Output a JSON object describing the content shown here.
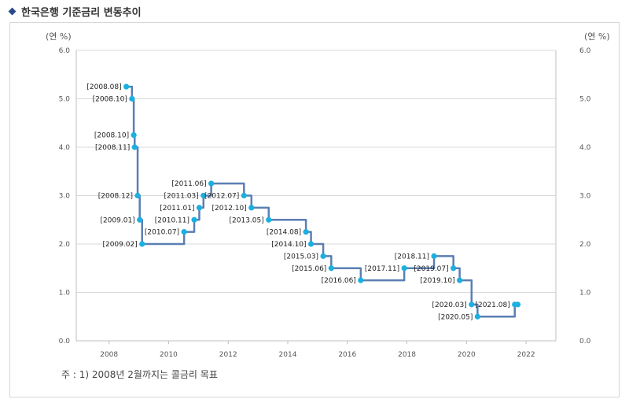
{
  "header": {
    "title": "한국은행 기준금리 변동추이"
  },
  "note": "주 : 1) 2008년 2월까지는 콜금리 목표",
  "colors": {
    "line": "#5a7fb3",
    "point": "#1ab0e0",
    "grid": "#d9d9d9",
    "axis": "#bfbfbf"
  },
  "chart_data": {
    "type": "line",
    "step": true,
    "ylabel_left": "(연 %)",
    "ylabel_right": "(연 %)",
    "ylim": [
      0,
      6
    ],
    "xlim": [
      2006.9,
      2023.0
    ],
    "yticks": [
      "0.0",
      "1.0",
      "2.0",
      "3.0",
      "4.0",
      "5.0",
      "6.0"
    ],
    "xticks": [
      "2008",
      "2010",
      "2012",
      "2014",
      "2016",
      "2018",
      "2020",
      "2022"
    ],
    "grid": "horizontal",
    "series": [
      {
        "points": [
          {
            "label": "[2008.08]",
            "x": 2008.58,
            "y": 5.25,
            "side": "left"
          },
          {
            "label": "[2008.10]",
            "x": 2008.77,
            "y": 5.0,
            "side": "left"
          },
          {
            "label": "[2008.10]",
            "x": 2008.83,
            "y": 4.25,
            "side": "left"
          },
          {
            "label": "[2008.11]",
            "x": 2008.86,
            "y": 4.0,
            "side": "left"
          },
          {
            "label": "[2008.12]",
            "x": 2008.96,
            "y": 3.0,
            "side": "left"
          },
          {
            "label": "[2009.01]",
            "x": 2009.03,
            "y": 2.5,
            "side": "left"
          },
          {
            "label": "[2009.02]",
            "x": 2009.11,
            "y": 2.0,
            "side": "left"
          },
          {
            "label": "[2010.07]",
            "x": 2010.52,
            "y": 2.25,
            "side": "left"
          },
          {
            "label": "[2010.11]",
            "x": 2010.86,
            "y": 2.5,
            "side": "left"
          },
          {
            "label": "[2011.01]",
            "x": 2011.03,
            "y": 2.75,
            "side": "left"
          },
          {
            "label": "[2011.03]",
            "x": 2011.17,
            "y": 3.0,
            "side": "left"
          },
          {
            "label": "[2011.06]",
            "x": 2011.43,
            "y": 3.25,
            "side": "left"
          },
          {
            "label": "[2012.07]",
            "x": 2012.53,
            "y": 3.0,
            "side": "left"
          },
          {
            "label": "[2012.10]",
            "x": 2012.78,
            "y": 2.75,
            "side": "left"
          },
          {
            "label": "[2013.05]",
            "x": 2013.36,
            "y": 2.5,
            "side": "left"
          },
          {
            "label": "[2014.08]",
            "x": 2014.61,
            "y": 2.25,
            "side": "left"
          },
          {
            "label": "[2014.10]",
            "x": 2014.78,
            "y": 2.0,
            "side": "left"
          },
          {
            "label": "[2015.03]",
            "x": 2015.19,
            "y": 1.75,
            "side": "left"
          },
          {
            "label": "[2015.06]",
            "x": 2015.46,
            "y": 1.5,
            "side": "left"
          },
          {
            "label": "[2016.06]",
            "x": 2016.45,
            "y": 1.25,
            "side": "left"
          },
          {
            "label": "[2017.11]",
            "x": 2017.91,
            "y": 1.5,
            "side": "left"
          },
          {
            "label": "[2018.11]",
            "x": 2018.91,
            "y": 1.75,
            "side": "left"
          },
          {
            "label": "[2019.07]",
            "x": 2019.56,
            "y": 1.5,
            "side": "left"
          },
          {
            "label": "[2019.10]",
            "x": 2019.77,
            "y": 1.25,
            "side": "left"
          },
          {
            "label": "[2020.03]",
            "x": 2020.17,
            "y": 0.75,
            "side": "left"
          },
          {
            "label": "[2020.05]",
            "x": 2020.37,
            "y": 0.5,
            "side": "left"
          },
          {
            "label": "[2021.08]",
            "x": 2021.62,
            "y": 0.75,
            "side": "left"
          },
          {
            "label": "",
            "x": 2021.72,
            "y": 0.75,
            "side": "none"
          }
        ]
      }
    ]
  }
}
